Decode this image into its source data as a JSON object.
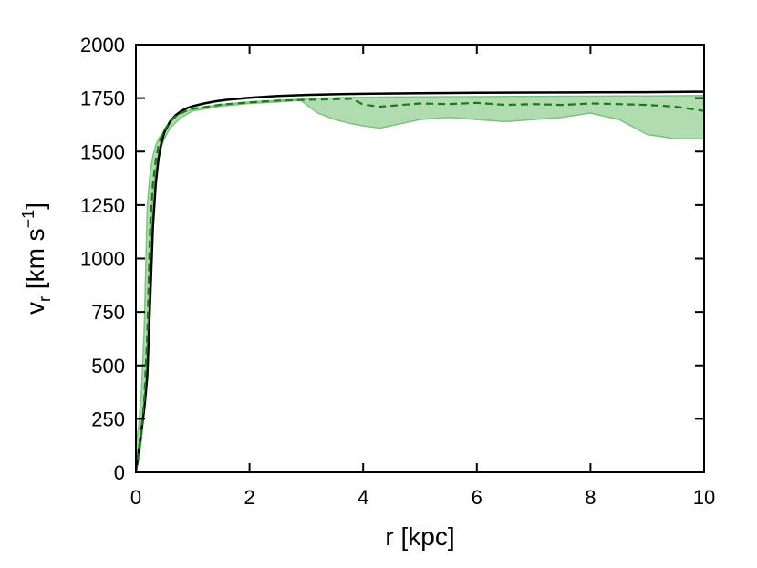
{
  "chart_data": {
    "type": "line",
    "title": "",
    "xlabel": "r [kpc]",
    "ylabel_parts": {
      "main": "v",
      "sub": "r",
      "unit_open": " [km s",
      "sup": "−1",
      "unit_close": "]"
    },
    "xlim": [
      0,
      10
    ],
    "ylim": [
      0,
      2000
    ],
    "x_ticks": [
      "0",
      "2",
      "4",
      "6",
      "8",
      "10"
    ],
    "y_ticks": [
      "0",
      "250",
      "500",
      "750",
      "1000",
      "1250",
      "1500",
      "1750",
      "2000"
    ],
    "grid": false,
    "legend": "none",
    "colors": {
      "solid": "#000000",
      "dashed": "#1a7a1a",
      "band": "#7cc47c"
    },
    "series": [
      {
        "style": "solid",
        "x": [
          0,
          0.05,
          0.1,
          0.15,
          0.2,
          0.25,
          0.3,
          0.35,
          0.4,
          0.45,
          0.5,
          0.6,
          0.7,
          0.8,
          0.9,
          1.0,
          1.2,
          1.4,
          1.6,
          2.0,
          2.5,
          3.0,
          3.5,
          4.0,
          5.0,
          6.0,
          7.0,
          8.0,
          9.0,
          10.0
        ],
        "y": [
          0,
          100,
          200,
          300,
          450,
          800,
          1150,
          1350,
          1470,
          1540,
          1590,
          1640,
          1670,
          1690,
          1703,
          1712,
          1725,
          1735,
          1742,
          1752,
          1760,
          1765,
          1768,
          1770,
          1773,
          1775,
          1776,
          1777,
          1778,
          1780
        ]
      },
      {
        "style": "dashed",
        "x": [
          0,
          0.05,
          0.1,
          0.15,
          0.2,
          0.25,
          0.3,
          0.35,
          0.4,
          0.45,
          0.5,
          0.6,
          0.7,
          0.8,
          0.9,
          1.0,
          1.5,
          2.0,
          2.5,
          3.0,
          3.5,
          3.8,
          4.0,
          4.3,
          5.0,
          5.5,
          6.0,
          6.5,
          7.0,
          7.5,
          8.0,
          8.5,
          9.0,
          9.5,
          10.0
        ],
        "y": [
          0,
          100,
          200,
          350,
          650,
          1150,
          1350,
          1460,
          1530,
          1570,
          1600,
          1640,
          1665,
          1680,
          1692,
          1700,
          1720,
          1730,
          1738,
          1742,
          1745,
          1747,
          1720,
          1710,
          1725,
          1722,
          1728,
          1718,
          1722,
          1718,
          1725,
          1722,
          1718,
          1710,
          1690
        ]
      }
    ],
    "band": {
      "x": [
        0,
        0.05,
        0.1,
        0.15,
        0.2,
        0.25,
        0.3,
        0.35,
        0.4,
        0.5,
        0.6,
        0.8,
        1.0,
        1.5,
        2.0,
        2.5,
        2.9,
        3.0,
        3.2,
        3.5,
        3.8,
        4.0,
        4.3,
        5.0,
        5.5,
        6.0,
        6.5,
        7.0,
        7.5,
        8.0,
        8.5,
        9.0,
        9.5,
        10.0
      ],
      "upper": [
        120,
        220,
        380,
        700,
        1250,
        1400,
        1480,
        1530,
        1560,
        1600,
        1640,
        1680,
        1700,
        1720,
        1732,
        1740,
        1745,
        1748,
        1750,
        1752,
        1753,
        1754,
        1755,
        1756,
        1757,
        1757,
        1758,
        1758,
        1759,
        1759,
        1760,
        1760,
        1761,
        1762
      ],
      "lower": [
        0,
        60,
        150,
        300,
        600,
        1050,
        1300,
        1420,
        1490,
        1560,
        1610,
        1660,
        1690,
        1712,
        1725,
        1732,
        1740,
        1720,
        1680,
        1650,
        1630,
        1620,
        1610,
        1650,
        1660,
        1650,
        1640,
        1650,
        1660,
        1680,
        1650,
        1580,
        1560,
        1560
      ]
    }
  }
}
